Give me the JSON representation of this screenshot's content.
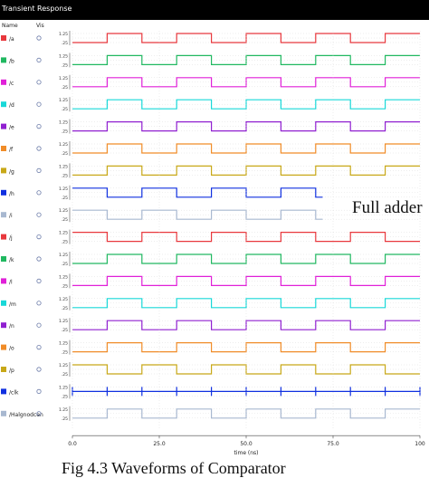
{
  "window_title": "Transient Response",
  "header": {
    "name_col": "Name",
    "vis_col": "Vis"
  },
  "annotation": "Full adder",
  "caption": "Fig 4.3 Waveforms of Comparator",
  "chart_data": {
    "type": "line",
    "title": "Transient Response",
    "xlabel": "time (ns)",
    "xlim": [
      0,
      100
    ],
    "xticks": [
      0,
      25.0,
      50.0,
      75.0,
      100
    ],
    "xtick_labels": [
      "0.0",
      "25.0",
      "50.0",
      "75.0",
      "100"
    ],
    "ytick_labels": [
      "1.25",
      ".25"
    ],
    "grid": true,
    "series": [
      {
        "name": "/a",
        "color": "#e8383d",
        "start": 0,
        "transitions": [
          10,
          20,
          30,
          40,
          50,
          60,
          70,
          80,
          90
        ]
      },
      {
        "name": "/b",
        "color": "#20b860",
        "start": 0,
        "transitions": [
          10,
          20,
          30,
          40,
          50,
          60,
          70,
          80,
          90
        ]
      },
      {
        "name": "/c",
        "color": "#e020d8",
        "start": 0,
        "transitions": [
          10,
          20,
          30,
          40,
          50,
          60,
          70,
          80,
          90
        ]
      },
      {
        "name": "/d",
        "color": "#18d8d8",
        "start": 0,
        "transitions": [
          10,
          20,
          30,
          40,
          50,
          60,
          70,
          80,
          90
        ]
      },
      {
        "name": "/e",
        "color": "#9020d0",
        "start": 0,
        "transitions": [
          10,
          20,
          30,
          40,
          50,
          60,
          70,
          80,
          90
        ]
      },
      {
        "name": "/f",
        "color": "#f08c28",
        "start": 0,
        "transitions": [
          10,
          20,
          30,
          40,
          50,
          60,
          70,
          80,
          90
        ]
      },
      {
        "name": "/g",
        "color": "#c8a818",
        "start": 0,
        "transitions": [
          10,
          20,
          30,
          40,
          50,
          60,
          70,
          80,
          90
        ]
      },
      {
        "name": "/h",
        "color": "#1030e0",
        "start": 1,
        "transitions": [
          10,
          20,
          30,
          40,
          50,
          60,
          70
        ]
      },
      {
        "name": "/i",
        "color": "#a8b8d0",
        "start": 1,
        "transitions": [
          10,
          20,
          30,
          40,
          50,
          60,
          70
        ]
      },
      {
        "name": "/j",
        "color": "#e8383d",
        "start": 1,
        "transitions": [
          10,
          20,
          30,
          40,
          50,
          60,
          70,
          80,
          90
        ]
      },
      {
        "name": "/k",
        "color": "#20b860",
        "start": 0,
        "transitions": [
          10,
          20,
          30,
          40,
          50,
          60,
          70,
          80,
          90
        ]
      },
      {
        "name": "/l",
        "color": "#e020d8",
        "start": 0,
        "transitions": [
          10,
          20,
          30,
          40,
          50,
          60,
          70,
          80,
          90
        ]
      },
      {
        "name": "/m",
        "color": "#18d8d8",
        "start": 0,
        "transitions": [
          10,
          20,
          30,
          40,
          50,
          60,
          70,
          80,
          90
        ]
      },
      {
        "name": "/n",
        "color": "#9020d0",
        "start": 0,
        "transitions": [
          10,
          20,
          30,
          40,
          50,
          60,
          70,
          80,
          90
        ]
      },
      {
        "name": "/o",
        "color": "#f08c28",
        "start": 0,
        "transitions": [
          10,
          20,
          30,
          40,
          50,
          60,
          70,
          80,
          90
        ]
      },
      {
        "name": "/p",
        "color": "#c8a818",
        "start": 1,
        "transitions": [
          10,
          20,
          30,
          40,
          50,
          60,
          70,
          80,
          90
        ]
      },
      {
        "name": "/clk",
        "color": "#1030e0",
        "start": 0,
        "transitions": [],
        "spikes": [
          0,
          10,
          20,
          30,
          40,
          50,
          60,
          70,
          80,
          90,
          100
        ]
      },
      {
        "name": "/Halgnodcen",
        "color": "#a8b8d0",
        "start": 0,
        "transitions": [
          10,
          20,
          30,
          40,
          50,
          60,
          70,
          80,
          90
        ]
      }
    ]
  }
}
